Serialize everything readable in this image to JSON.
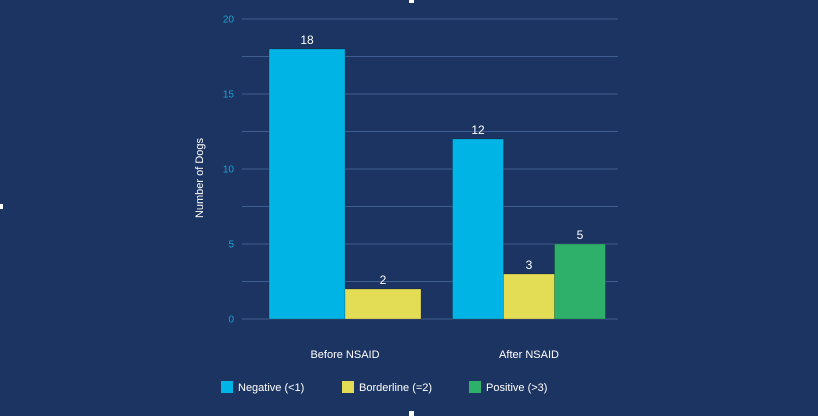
{
  "chart_data": {
    "type": "bar",
    "title": "",
    "xlabel": "",
    "ylabel": "Number of Dogs",
    "ylim": [
      0,
      20
    ],
    "yticks": [
      0,
      5,
      10,
      15,
      20
    ],
    "grid": true,
    "legend_position": "bottom",
    "categories": [
      "Before NSAID",
      "After NSAID"
    ],
    "series": [
      {
        "name": "Negative (<1)",
        "color": "#00b4e6",
        "values": [
          18,
          12
        ]
      },
      {
        "name": "Borderline (=2)",
        "color": "#e2dd55",
        "values": [
          2,
          3
        ]
      },
      {
        "name": "Positive (>3)",
        "color": "#2fb06a",
        "values": [
          0,
          5
        ]
      }
    ],
    "data_labels": [
      [
        "18",
        "12"
      ],
      [
        "2",
        "3"
      ],
      [
        "",
        "5"
      ]
    ]
  },
  "colors": {
    "background": "#1c3461",
    "gridline": "#3f5d8e",
    "tick_label": "#1ea0d2",
    "text": "#ffffff"
  }
}
